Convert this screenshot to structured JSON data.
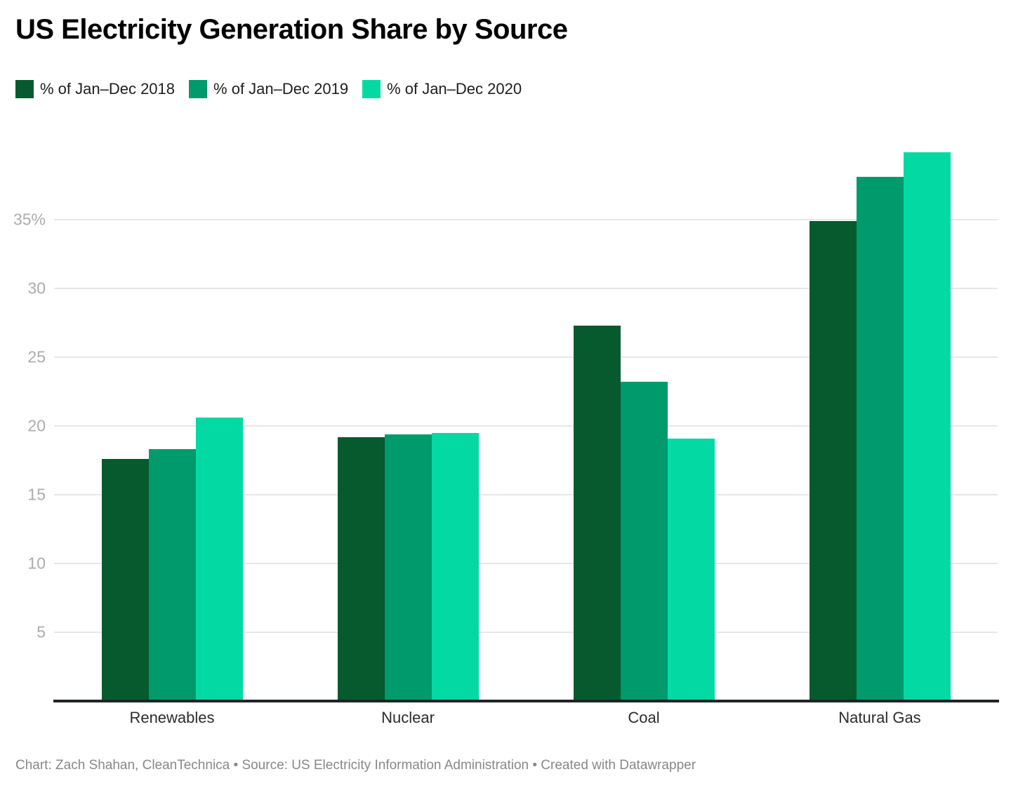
{
  "chart_data": {
    "type": "bar",
    "title": "US Electricity Generation Share by Source",
    "categories": [
      "Renewables",
      "Nuclear",
      "Coal",
      "Natural Gas"
    ],
    "series": [
      {
        "name": "% of Jan–Dec 2018",
        "color": "#065a2d",
        "values": [
          17.6,
          19.2,
          27.3,
          34.9
        ]
      },
      {
        "name": "% of Jan–Dec 2019",
        "color": "#009a6c",
        "values": [
          18.3,
          19.4,
          23.2,
          38.1
        ]
      },
      {
        "name": "% of Jan–Dec 2020",
        "color": "#03daa3",
        "values": [
          20.6,
          19.5,
          19.1,
          39.9
        ]
      }
    ],
    "y_axis": {
      "ticks": [
        5,
        10,
        15,
        20,
        25,
        30,
        35
      ],
      "tick_labels": [
        "5",
        "10",
        "15",
        "20",
        "25",
        "30",
        "35%"
      ],
      "min": 0,
      "max": 41,
      "grid": true
    },
    "legend_position": "top",
    "footer": "Chart: Zach Shahan, CleanTechnica • Source: US Electricity Information Administration • Created with Datawrapper",
    "colors": {
      "gridline": "#e7e7e7",
      "axis_line": "#212325",
      "tick_text": "#acacac",
      "background": "#ffffff"
    }
  }
}
